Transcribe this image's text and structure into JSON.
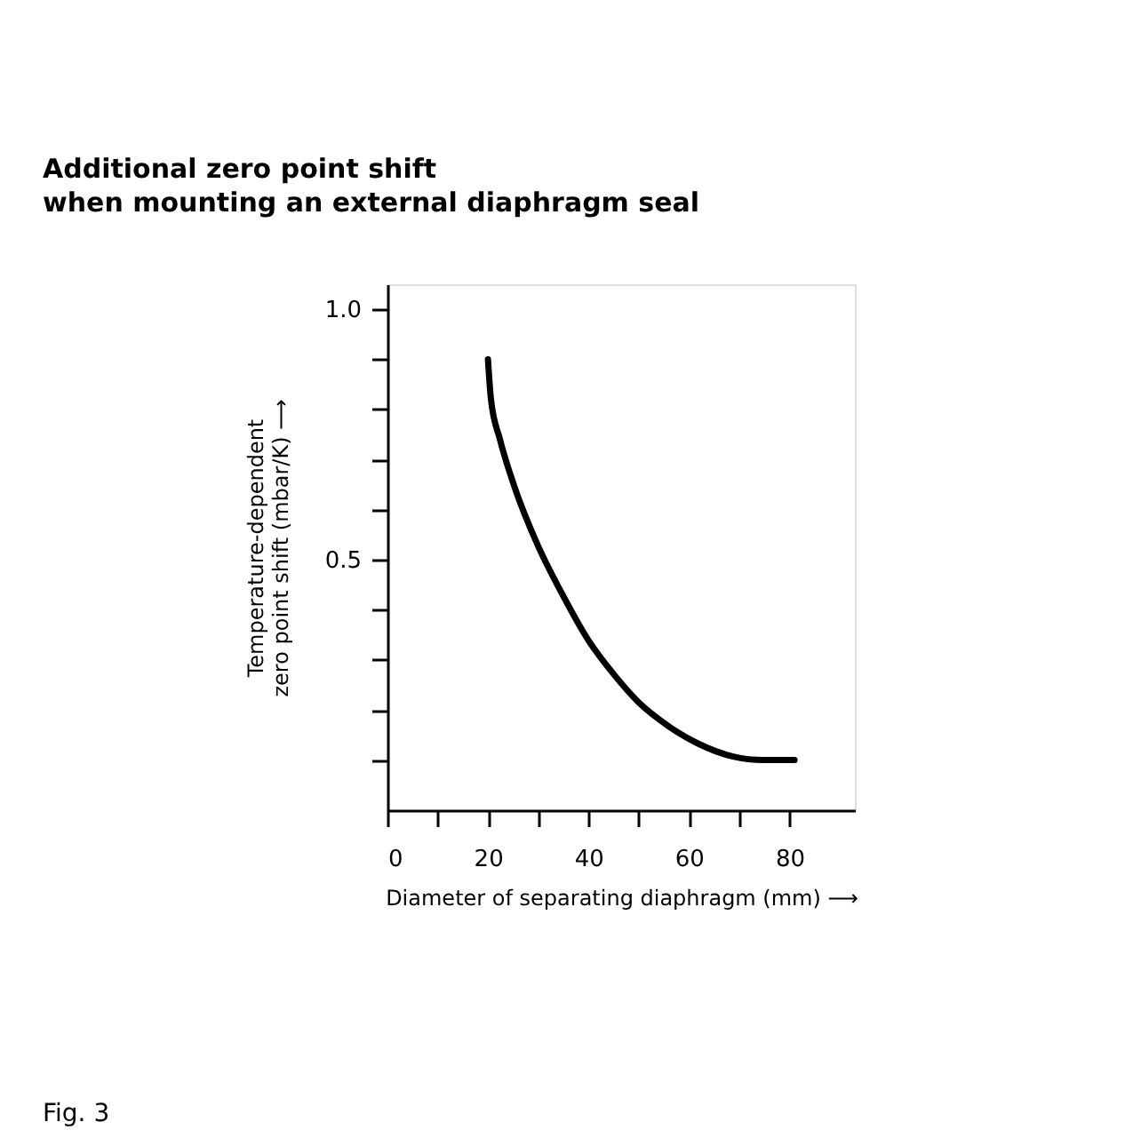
{
  "chart_data": {
    "type": "line",
    "title": "Additional zero point shift\nwhen mounting an external diaphragm seal",
    "xlabel": "Diameter of separating diaphragm (mm) ⟶",
    "ylabel": "Temperature-dependent\nzero point shift (mbar/K) ⟶",
    "annotations": [
      "Fig. 3"
    ],
    "x": [
      20,
      20.6,
      22.4,
      25.3,
      30,
      34.7,
      40,
      45.3,
      50,
      55.9,
      61.8,
      68.8,
      74.7,
      81
    ],
    "series": [
      {
        "color": "#000000",
        "values": [
          0.9,
          0.82,
          0.74,
          0.645,
          0.527,
          0.433,
          0.339,
          0.268,
          0.215,
          0.168,
          0.133,
          0.107,
          0.1,
          0.1
        ]
      }
    ],
    "xlim": [
      0,
      93
    ],
    "ylim": [
      0,
      1.05
    ],
    "xticks": [
      {
        "value": 0,
        "label": "0"
      },
      {
        "value": 10,
        "label": null
      },
      20,
      {
        "value": 30,
        "label": null
      },
      40,
      {
        "value": 50,
        "label": null
      },
      60,
      {
        "value": 70,
        "label": null
      },
      80
    ],
    "yticks": [
      {
        "value": 0.1,
        "label": null
      },
      {
        "value": 0.2,
        "label": null
      },
      {
        "value": 0.3,
        "label": null
      },
      {
        "value": 0.4,
        "label": null
      },
      {
        "value": 0.5,
        "label": "0.5"
      },
      {
        "value": 0.6,
        "label": null
      },
      {
        "value": 0.7,
        "label": null
      },
      {
        "value": 0.8,
        "label": null
      },
      {
        "value": 0.9,
        "label": null
      },
      {
        "value": 1.0,
        "label": "1.0"
      }
    ],
    "grid": false,
    "marker": "none",
    "line_style": "solid"
  }
}
